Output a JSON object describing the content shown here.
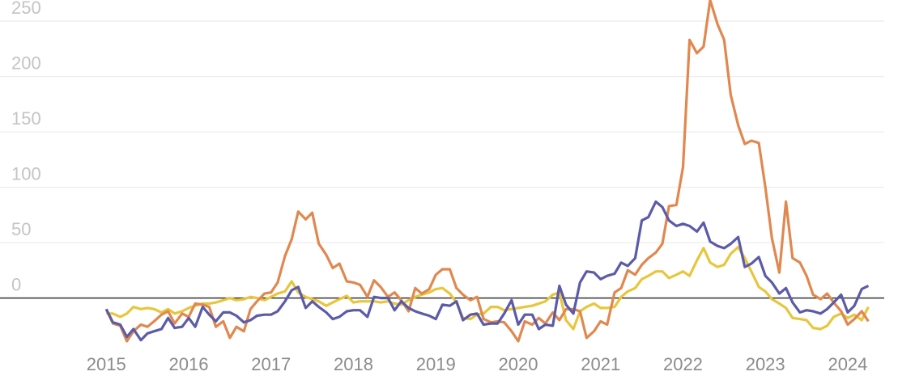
{
  "chart_data": {
    "type": "line",
    "x": [
      2015,
      2015.08,
      2015.17,
      2015.25,
      2015.33,
      2015.42,
      2015.5,
      2015.58,
      2015.67,
      2015.75,
      2015.83,
      2015.92,
      2016,
      2016.08,
      2016.17,
      2016.25,
      2016.33,
      2016.42,
      2016.5,
      2016.58,
      2016.67,
      2016.75,
      2016.83,
      2016.92,
      2017,
      2017.08,
      2017.17,
      2017.25,
      2017.33,
      2017.42,
      2017.5,
      2017.58,
      2017.67,
      2017.75,
      2017.83,
      2017.92,
      2018,
      2018.08,
      2018.17,
      2018.25,
      2018.33,
      2018.42,
      2018.5,
      2018.58,
      2018.67,
      2018.75,
      2018.83,
      2018.92,
      2019,
      2019.08,
      2019.17,
      2019.25,
      2019.33,
      2019.42,
      2019.5,
      2019.58,
      2019.67,
      2019.75,
      2019.83,
      2019.92,
      2020,
      2020.08,
      2020.17,
      2020.25,
      2020.33,
      2020.42,
      2020.5,
      2020.58,
      2020.67,
      2020.75,
      2020.83,
      2020.92,
      2021,
      2021.08,
      2021.17,
      2021.25,
      2021.33,
      2021.42,
      2021.5,
      2021.58,
      2021.67,
      2021.75,
      2021.83,
      2021.92,
      2022,
      2022.08,
      2022.17,
      2022.25,
      2022.33,
      2022.42,
      2022.5,
      2022.58,
      2022.67,
      2022.75,
      2022.83,
      2022.92,
      2023,
      2023.08,
      2023.17,
      2023.25,
      2023.33,
      2023.42,
      2023.5,
      2023.58,
      2023.67,
      2023.75,
      2023.83,
      2023.92,
      2024,
      2024.08,
      2024.17,
      2024.25
    ],
    "series": [
      {
        "color": "#e8c63c",
        "values": [
          -14,
          -14,
          -17,
          -14,
          -8,
          -10,
          -9,
          -10,
          -13,
          -10,
          -14,
          -12,
          -9,
          -7,
          -5,
          -5,
          -4,
          -2,
          0,
          -2,
          -1,
          1,
          0,
          -2,
          1,
          4,
          6,
          15,
          5,
          1,
          -1,
          -3,
          -7,
          -4,
          -1,
          2,
          -4,
          -3,
          -3,
          -3,
          -4,
          -3,
          -5,
          -6,
          -2,
          1,
          3,
          5,
          8,
          9,
          4,
          -4,
          -18,
          -19,
          -15,
          -14,
          -8,
          -8,
          -11,
          -10,
          -9,
          -8,
          -7,
          -5,
          -3,
          3,
          5,
          -20,
          -28,
          -12,
          -8,
          -5,
          -9,
          -9,
          -8,
          1,
          6,
          9,
          17,
          20,
          24,
          24,
          18,
          21,
          24,
          20,
          34,
          45,
          32,
          28,
          30,
          40,
          46,
          36,
          24,
          10,
          6,
          -1,
          -5,
          -9,
          -18,
          -19,
          -20,
          -27,
          -28,
          -25,
          -17,
          -14,
          -18,
          -15,
          -20,
          -8
        ]
      },
      {
        "color": "#e0884f",
        "values": [
          -10,
          -23,
          -25,
          -39,
          -30,
          -24,
          -26,
          -21,
          -15,
          -12,
          -23,
          -14,
          -17,
          -5,
          -6,
          -8,
          -26,
          -21,
          -36,
          -26,
          -30,
          -10,
          -3,
          4,
          5,
          14,
          38,
          53,
          78,
          71,
          77,
          49,
          39,
          27,
          31,
          15,
          14,
          12,
          1,
          16,
          10,
          1,
          5,
          -2,
          -12,
          9,
          4,
          8,
          21,
          26,
          26,
          9,
          3,
          -2,
          1,
          -19,
          -22,
          -21,
          -22,
          -30,
          -39,
          -21,
          -24,
          -18,
          -23,
          -13,
          -20,
          -10,
          -10,
          -12,
          -36,
          -30,
          -21,
          -24,
          5,
          9,
          25,
          21,
          30,
          36,
          41,
          49,
          83,
          84,
          118,
          233,
          221,
          227,
          269,
          247,
          233,
          183,
          156,
          139,
          142,
          140,
          100,
          54,
          23,
          87,
          36,
          32,
          20,
          3,
          -1,
          4,
          -4,
          -12,
          -24,
          -19,
          -12,
          -21
        ]
      },
      {
        "color": "#5b5ba8",
        "values": [
          -10,
          -22,
          -24,
          -35,
          -28,
          -38,
          -32,
          -30,
          -28,
          -18,
          -27,
          -26,
          -18,
          -26,
          -8,
          -15,
          -21,
          -13,
          -13,
          -16,
          -22,
          -20,
          -16,
          -15,
          -15,
          -12,
          -3,
          7,
          10,
          -9,
          -3,
          -8,
          -13,
          -19,
          -17,
          -12,
          -11,
          -11,
          -17,
          1,
          0,
          0,
          -11,
          -3,
          -9,
          -12,
          -14,
          -16,
          -19,
          -6,
          -7,
          -3,
          -20,
          -15,
          -14,
          -24,
          -23,
          -23,
          -14,
          -2,
          -24,
          -15,
          -15,
          -28,
          -24,
          -25,
          11,
          -6,
          -14,
          14,
          24,
          23,
          17,
          20,
          22,
          32,
          29,
          36,
          70,
          73,
          87,
          82,
          70,
          65,
          67,
          65,
          60,
          68,
          51,
          47,
          45,
          49,
          55,
          28,
          31,
          37,
          20,
          14,
          4,
          9,
          -4,
          -13,
          -11,
          -12,
          -14,
          -10,
          -4,
          3,
          -13,
          -7,
          8,
          11
        ]
      }
    ],
    "xlim": [
      2013.71,
      2024.61
    ],
    "xticks": [
      2015,
      2016,
      2017,
      2018,
      2019,
      2020,
      2021,
      2022,
      2023,
      2024
    ],
    "ylim": [
      -74,
      269
    ],
    "yticks": [
      0,
      50,
      100,
      150,
      200,
      250
    ],
    "grid": true
  }
}
